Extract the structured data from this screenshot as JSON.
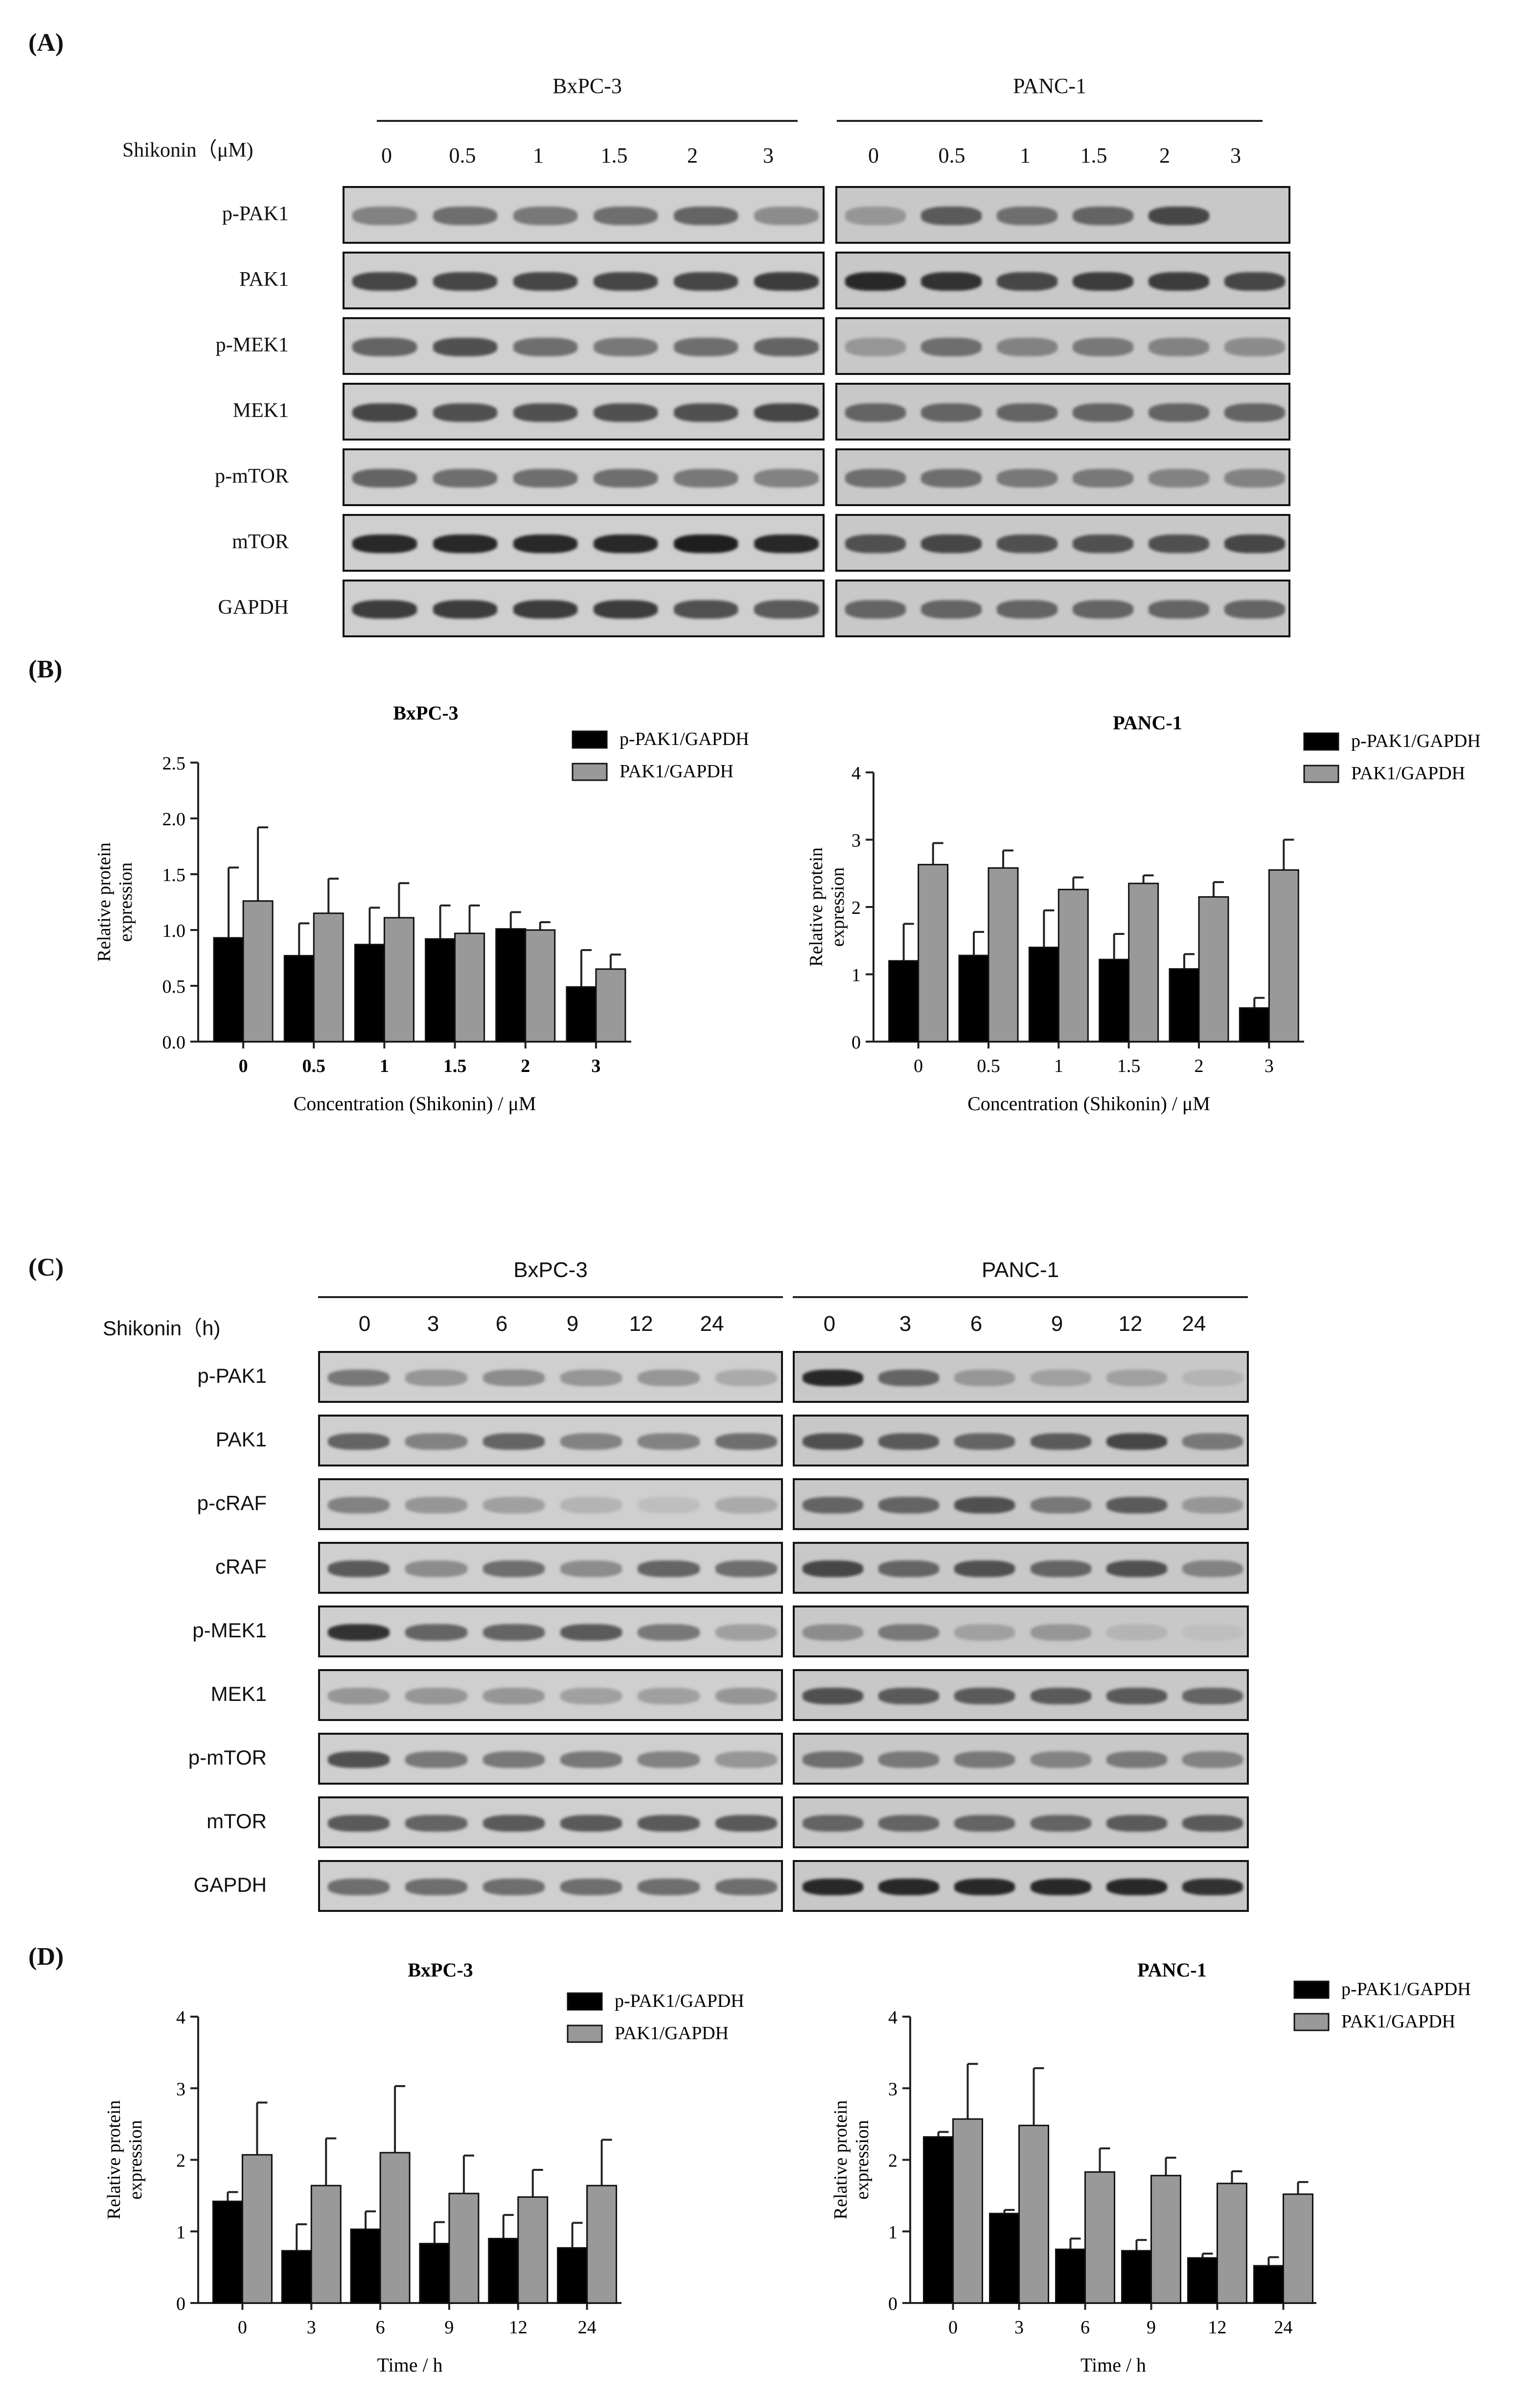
{
  "panel_labels": {
    "a": "(A)",
    "b": "(B)",
    "c": "(C)",
    "d": "(D)"
  },
  "panelA": {
    "cell_lines": [
      "BxPC-3",
      "PANC-1"
    ],
    "treatment_label": "Shikonin（μM)",
    "concentrations": [
      "0",
      "0.5",
      "1",
      "1.5",
      "2",
      "3"
    ],
    "rows": [
      {
        "label": "p-PAK1",
        "bx": [
          0.45,
          0.55,
          0.5,
          0.55,
          0.6,
          0.4
        ],
        "pa": [
          0.35,
          0.65,
          0.55,
          0.6,
          0.75,
          0.1
        ]
      },
      {
        "label": "PAK1",
        "bx": [
          0.75,
          0.75,
          0.75,
          0.75,
          0.75,
          0.8
        ],
        "pa": [
          0.9,
          0.85,
          0.75,
          0.8,
          0.8,
          0.75
        ]
      },
      {
        "label": "p-MEK1",
        "bx": [
          0.6,
          0.7,
          0.55,
          0.5,
          0.55,
          0.6
        ],
        "pa": [
          0.35,
          0.55,
          0.45,
          0.5,
          0.45,
          0.4
        ]
      },
      {
        "label": "MEK1",
        "bx": [
          0.75,
          0.7,
          0.7,
          0.7,
          0.7,
          0.75
        ],
        "pa": [
          0.6,
          0.6,
          0.6,
          0.6,
          0.6,
          0.6
        ]
      },
      {
        "label": "p-mTOR",
        "bx": [
          0.6,
          0.55,
          0.55,
          0.55,
          0.5,
          0.45
        ],
        "pa": [
          0.55,
          0.55,
          0.5,
          0.5,
          0.45,
          0.45
        ]
      },
      {
        "label": "mTOR",
        "bx": [
          0.9,
          0.9,
          0.9,
          0.9,
          0.95,
          0.9
        ],
        "pa": [
          0.7,
          0.75,
          0.7,
          0.7,
          0.7,
          0.75
        ]
      },
      {
        "label": "GAPDH",
        "bx": [
          0.8,
          0.8,
          0.8,
          0.8,
          0.7,
          0.65
        ],
        "pa": [
          0.6,
          0.6,
          0.6,
          0.6,
          0.6,
          0.6
        ]
      }
    ]
  },
  "panelC": {
    "cell_lines": [
      "BxPC-3",
      "PANC-1"
    ],
    "treatment_label": "Shikonin（h)",
    "times": [
      "0",
      "3",
      "6",
      "9",
      "12",
      "24"
    ],
    "rows": [
      {
        "label": "p-PAK1",
        "bx": [
          0.5,
          0.35,
          0.4,
          0.35,
          0.35,
          0.25
        ],
        "pa": [
          0.9,
          0.6,
          0.35,
          0.3,
          0.3,
          0.2
        ]
      },
      {
        "label": "PAK1",
        "bx": [
          0.6,
          0.45,
          0.6,
          0.45,
          0.45,
          0.55
        ],
        "pa": [
          0.7,
          0.65,
          0.6,
          0.65,
          0.75,
          0.5
        ]
      },
      {
        "label": "p-cRAF",
        "bx": [
          0.45,
          0.35,
          0.3,
          0.2,
          0.15,
          0.25
        ],
        "pa": [
          0.6,
          0.6,
          0.7,
          0.5,
          0.65,
          0.35
        ]
      },
      {
        "label": "cRAF",
        "bx": [
          0.65,
          0.4,
          0.55,
          0.4,
          0.6,
          0.55
        ],
        "pa": [
          0.75,
          0.6,
          0.7,
          0.6,
          0.7,
          0.45
        ]
      },
      {
        "label": "p-MEK1",
        "bx": [
          0.85,
          0.6,
          0.6,
          0.65,
          0.5,
          0.3
        ],
        "pa": [
          0.4,
          0.5,
          0.3,
          0.35,
          0.2,
          0.15
        ]
      },
      {
        "label": "MEK1",
        "bx": [
          0.35,
          0.35,
          0.35,
          0.3,
          0.3,
          0.35
        ],
        "pa": [
          0.7,
          0.65,
          0.65,
          0.65,
          0.65,
          0.6
        ]
      },
      {
        "label": "p-mTOR",
        "bx": [
          0.7,
          0.5,
          0.5,
          0.5,
          0.45,
          0.35
        ],
        "pa": [
          0.55,
          0.5,
          0.5,
          0.45,
          0.5,
          0.45
        ]
      },
      {
        "label": "mTOR",
        "bx": [
          0.65,
          0.6,
          0.65,
          0.65,
          0.65,
          0.65
        ],
        "pa": [
          0.6,
          0.6,
          0.6,
          0.6,
          0.65,
          0.65
        ]
      },
      {
        "label": "GAPDH",
        "bx": [
          0.55,
          0.55,
          0.55,
          0.55,
          0.55,
          0.55
        ],
        "pa": [
          0.9,
          0.9,
          0.9,
          0.9,
          0.9,
          0.85
        ]
      }
    ]
  },
  "chart_data": [
    {
      "type": "bar",
      "title": "BxPC-3",
      "xlabel": "Concentration (Shikonin) / μM",
      "ylabel": "Relative protein expression",
      "categories": [
        "0",
        "0.5",
        "1",
        "1.5",
        "2",
        "3"
      ],
      "ylim": [
        0,
        2.5
      ],
      "yticks": [
        "0.0",
        "0.5",
        "1.0",
        "1.5",
        "2.0",
        "2.5"
      ],
      "legend": "top-right",
      "series": [
        {
          "name": "p-PAK1/GAPDH",
          "color": "#000000",
          "values": [
            0.93,
            0.77,
            0.87,
            0.92,
            1.01,
            0.49
          ],
          "errors": [
            0.63,
            0.29,
            0.33,
            0.3,
            0.15,
            0.33
          ]
        },
        {
          "name": "PAK1/GAPDH",
          "color": "#999999",
          "values": [
            1.26,
            1.15,
            1.11,
            0.97,
            1.0,
            0.65
          ],
          "errors": [
            0.66,
            0.31,
            0.31,
            0.25,
            0.07,
            0.13
          ]
        }
      ]
    },
    {
      "type": "bar",
      "title": "PANC-1",
      "xlabel": "Concentration (Shikonin) / μM",
      "ylabel": "Relative protein expression",
      "categories": [
        "0",
        "0.5",
        "1",
        "1.5",
        "2",
        "3"
      ],
      "ylim": [
        0,
        4
      ],
      "yticks": [
        "0",
        "1",
        "2",
        "3",
        "4"
      ],
      "legend": "top-right",
      "series": [
        {
          "name": "p-PAK1/GAPDH",
          "color": "#000000",
          "values": [
            1.2,
            1.28,
            1.4,
            1.22,
            1.08,
            0.5
          ],
          "errors": [
            0.55,
            0.35,
            0.55,
            0.38,
            0.22,
            0.15
          ]
        },
        {
          "name": "PAK1/GAPDH",
          "color": "#999999",
          "values": [
            2.63,
            2.58,
            2.26,
            2.35,
            2.15,
            2.55
          ],
          "errors": [
            0.32,
            0.26,
            0.18,
            0.12,
            0.22,
            0.45
          ]
        }
      ]
    },
    {
      "type": "bar",
      "title": "BxPC-3",
      "xlabel": "Time / h",
      "ylabel": "Relative protein expression",
      "categories": [
        "0",
        "3",
        "6",
        "9",
        "12",
        "24"
      ],
      "ylim": [
        0,
        4
      ],
      "yticks": [
        "0",
        "1",
        "2",
        "3",
        "4"
      ],
      "legend": "top-right",
      "series": [
        {
          "name": "p-PAK1/GAPDH",
          "color": "#000000",
          "values": [
            1.42,
            0.73,
            1.03,
            0.83,
            0.9,
            0.77
          ],
          "errors": [
            0.13,
            0.37,
            0.25,
            0.3,
            0.33,
            0.35
          ]
        },
        {
          "name": "PAK1/GAPDH",
          "color": "#999999",
          "values": [
            2.07,
            1.64,
            2.1,
            1.53,
            1.48,
            1.64
          ],
          "errors": [
            0.73,
            0.66,
            0.93,
            0.53,
            0.38,
            0.64
          ]
        }
      ]
    },
    {
      "type": "bar",
      "title": "PANC-1",
      "xlabel": "Time / h",
      "ylabel": "Relative protein expression",
      "categories": [
        "0",
        "3",
        "6",
        "9",
        "12",
        "24"
      ],
      "ylim": [
        0,
        4
      ],
      "yticks": [
        "0",
        "1",
        "2",
        "3",
        "4"
      ],
      "legend": "top-right",
      "series": [
        {
          "name": "p-PAK1/GAPDH",
          "color": "#000000",
          "values": [
            2.32,
            1.25,
            0.75,
            0.73,
            0.63,
            0.52
          ],
          "errors": [
            0.07,
            0.05,
            0.15,
            0.15,
            0.06,
            0.12
          ]
        },
        {
          "name": "PAK1/GAPDH",
          "color": "#999999",
          "values": [
            2.57,
            2.48,
            1.83,
            1.78,
            1.67,
            1.52
          ],
          "errors": [
            0.77,
            0.8,
            0.33,
            0.25,
            0.17,
            0.17
          ]
        }
      ]
    }
  ]
}
